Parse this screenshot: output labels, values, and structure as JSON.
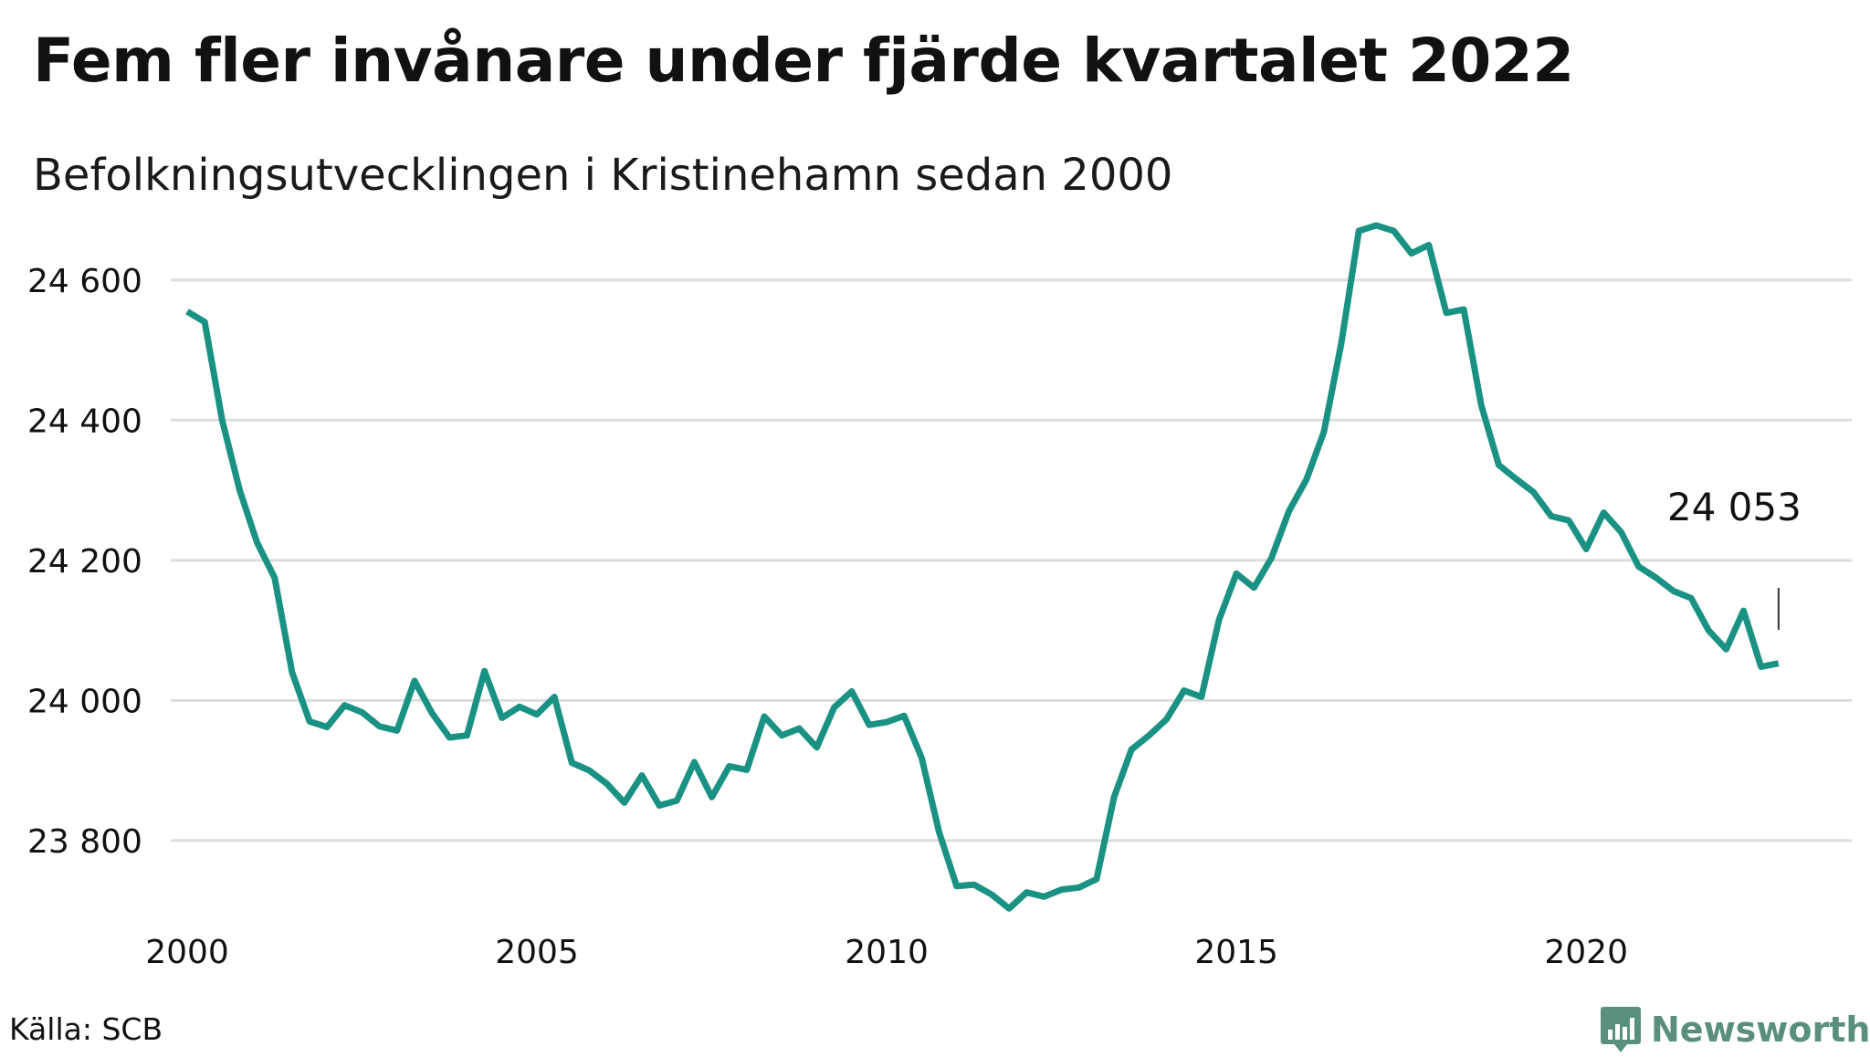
{
  "colors": {
    "line": "#1a9283",
    "grid": "#dddddd",
    "text": "#111111",
    "brand": "#5a8f80"
  },
  "header": {
    "title": "Fem fler invånare under fjärde kvartalet 2022",
    "subtitle": "Befolkningsutvecklingen i Kristinehamn sedan 2000"
  },
  "footer": {
    "source": "Källa: SCB",
    "brand": "Newsworthy",
    "brand_icon": "newsworthy-logo-icon"
  },
  "chart_data": {
    "type": "line",
    "title": "Fem fler invånare under fjärde kvartalet 2022",
    "subtitle": "Befolkningsutvecklingen i Kristinehamn sedan 2000",
    "xlabel": "",
    "ylabel": "",
    "xlim": [
      2000.0,
      2023.0
    ],
    "ylim": [
      23680,
      24700
    ],
    "x_ticks": [
      2000,
      2005,
      2010,
      2015,
      2020
    ],
    "x_tick_labels": [
      "2000",
      "2005",
      "2010",
      "2015",
      "2020"
    ],
    "y_ticks": [
      23800,
      24000,
      24200,
      24400,
      24600
    ],
    "y_tick_labels": [
      "23 800",
      "24 000",
      "24 200",
      "24 400",
      "24 600"
    ],
    "grid": "horizontal",
    "annotation": {
      "text": "24 053",
      "x": 2022.75,
      "y": 24053
    },
    "series": [
      {
        "x": [
          2000.0,
          2000.25,
          2000.5,
          2000.75,
          2001.0,
          2001.25,
          2001.5,
          2001.75,
          2002.0,
          2002.25,
          2002.5,
          2002.75,
          2003.0,
          2003.25,
          2003.5,
          2003.75,
          2004.0,
          2004.25,
          2004.5,
          2004.75,
          2005.0,
          2005.25,
          2005.5,
          2005.75,
          2006.0,
          2006.25,
          2006.5,
          2006.75,
          2007.0,
          2007.25,
          2007.5,
          2007.75,
          2008.0,
          2008.25,
          2008.5,
          2008.75,
          2009.0,
          2009.25,
          2009.5,
          2009.75,
          2010.0,
          2010.25,
          2010.5,
          2010.75,
          2011.0,
          2011.25,
          2011.5,
          2011.75,
          2012.0,
          2012.25,
          2012.5,
          2012.75,
          2013.0,
          2013.25,
          2013.5,
          2013.75,
          2014.0,
          2014.25,
          2014.5,
          2014.75,
          2015.0,
          2015.25,
          2015.5,
          2015.75,
          2016.0,
          2016.25,
          2016.5,
          2016.75,
          2017.0,
          2017.25,
          2017.5,
          2017.75,
          2018.0,
          2018.25,
          2018.5,
          2018.75,
          2019.0,
          2019.25,
          2019.5,
          2019.75,
          2020.0,
          2020.25,
          2020.5,
          2020.75,
          2021.0,
          2021.25,
          2021.5,
          2021.75,
          2022.0,
          2022.25,
          2022.5,
          2022.75
        ],
        "values": [
          24555,
          24540,
          24400,
          24300,
          24225,
          24175,
          24040,
          23970,
          23962,
          23993,
          23983,
          23963,
          23957,
          24028,
          23982,
          23947,
          23950,
          24042,
          23975,
          23991,
          23980,
          24005,
          23911,
          23900,
          23881,
          23854,
          23893,
          23850,
          23857,
          23912,
          23862,
          23906,
          23901,
          23977,
          23950,
          23960,
          23933,
          23990,
          24013,
          23965,
          23969,
          23978,
          23918,
          23812,
          23735,
          23737,
          23723,
          23703,
          23726,
          23720,
          23730,
          23733,
          23745,
          23862,
          23930,
          23950,
          23973,
          24014,
          24005,
          24115,
          24181,
          24161,
          24203,
          24270,
          24315,
          24383,
          24510,
          24670,
          24678,
          24670,
          24638,
          24650,
          24553,
          24558,
          24421,
          24336,
          24316,
          24297,
          24263,
          24257,
          24216,
          24268,
          24240,
          24191,
          24175,
          24156,
          24146,
          24100,
          24073,
          24128,
          24048,
          24053
        ]
      }
    ]
  }
}
